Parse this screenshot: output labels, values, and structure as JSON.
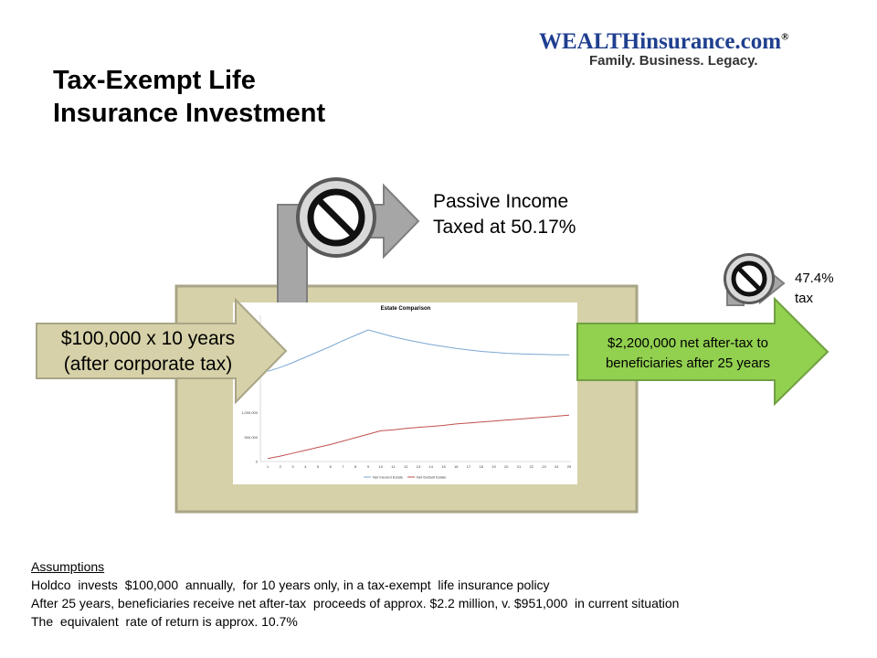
{
  "slide": {
    "title_line1": "Tax-Exempt Life",
    "title_line2": "Insurance Investment"
  },
  "logo": {
    "brand_part1": "WEALTH",
    "brand_part2": "insurance.com",
    "registered": "®",
    "tagline": "Family. Business. Legacy."
  },
  "passive": {
    "line1": "Passive Income",
    "line2": "Taxed at 50.17%"
  },
  "estate_tax": {
    "line1": "47.4%",
    "line2": "tax"
  },
  "input_arrow": {
    "line1": "$100,000 x 10 years",
    "line2": "(after corporate tax)"
  },
  "output_arrow": {
    "line1": "$2,200,000 net after-tax to",
    "line2": "beneficiaries after 25 years"
  },
  "icons": [
    "no-symbol-icon",
    "no-symbol-icon"
  ],
  "colors": {
    "box_fill": "#d6d1a8",
    "box_border": "#a8a587",
    "arrow_grey": "#a6a6a6",
    "input_arrow_fill": "#d6d1a8",
    "output_arrow_fill": "#92d050",
    "brand_blue": "#1f3f8f"
  },
  "chart_data": {
    "type": "line",
    "title": "Estate Comparison",
    "x": [
      1,
      2,
      3,
      4,
      5,
      6,
      7,
      8,
      9,
      10,
      11,
      12,
      13,
      14,
      15,
      16,
      17,
      18,
      19,
      20,
      21,
      22,
      23,
      24,
      25
    ],
    "ytick_labels": [
      "1,000,000",
      "500,000",
      "0"
    ],
    "ylim": [
      0,
      3000000
    ],
    "series": [
      {
        "name": "Net Insured Estate",
        "color": "#7ba7d4",
        "values": [
          1850000,
          1930000,
          2030000,
          2140000,
          2250000,
          2360000,
          2480000,
          2590000,
          2700000,
          2630000,
          2560000,
          2500000,
          2450000,
          2400000,
          2360000,
          2320000,
          2290000,
          2260000,
          2240000,
          2220000,
          2210000,
          2200000,
          2195000,
          2190000,
          2190000
        ]
      },
      {
        "name": "Net Default Estate",
        "color": "#c0504d",
        "values": [
          60000,
          110000,
          170000,
          230000,
          290000,
          350000,
          420000,
          490000,
          560000,
          630000,
          650000,
          680000,
          700000,
          720000,
          740000,
          770000,
          790000,
          810000,
          830000,
          850000,
          870000,
          890000,
          910000,
          930000,
          951000
        ]
      }
    ]
  },
  "assumptions": {
    "heading": "Assumptions",
    "line1": "Holdco  invests  $100,000  annually,  for 10 years only, in a tax-exempt  life insurance policy",
    "line2": "After 25 years, beneficiaries receive net after-tax  proceeds of approx. $2.2 million, v. $951,000  in current situation",
    "line3": "The  equivalent  rate of return is approx. 10.7%"
  }
}
